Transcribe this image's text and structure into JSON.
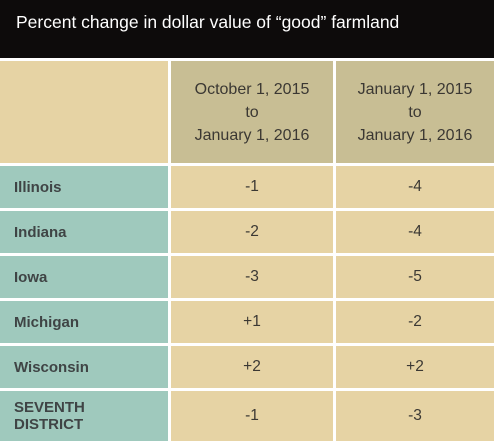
{
  "chart_data": {
    "type": "table",
    "title": "Percent change in dollar value of “good” farmland",
    "columns": [
      {
        "label": "October 1, 2015\nto\nJanuary 1, 2016"
      },
      {
        "label": "January 1, 2015\nto\nJanuary 1, 2016"
      }
    ],
    "rows": [
      {
        "label": "Illinois",
        "values": [
          "-1",
          "-4"
        ]
      },
      {
        "label": "Indiana",
        "values": [
          "-2",
          "-4"
        ]
      },
      {
        "label": "Iowa",
        "values": [
          "-3",
          "-5"
        ]
      },
      {
        "label": "Michigan",
        "values": [
          "+1",
          "-2"
        ]
      },
      {
        "label": "Wisconsin",
        "values": [
          "+2",
          "+2"
        ]
      },
      {
        "label": "SEVENTH\nDISTRICT",
        "values": [
          "-1",
          "-3"
        ]
      }
    ],
    "colors": {
      "title_background": "#0d0b0b",
      "header_background": "#c8be94",
      "row_label_background": "#9fc9bd",
      "value_background": "#e6d3a4",
      "grid_lines": "#ffffff"
    }
  }
}
